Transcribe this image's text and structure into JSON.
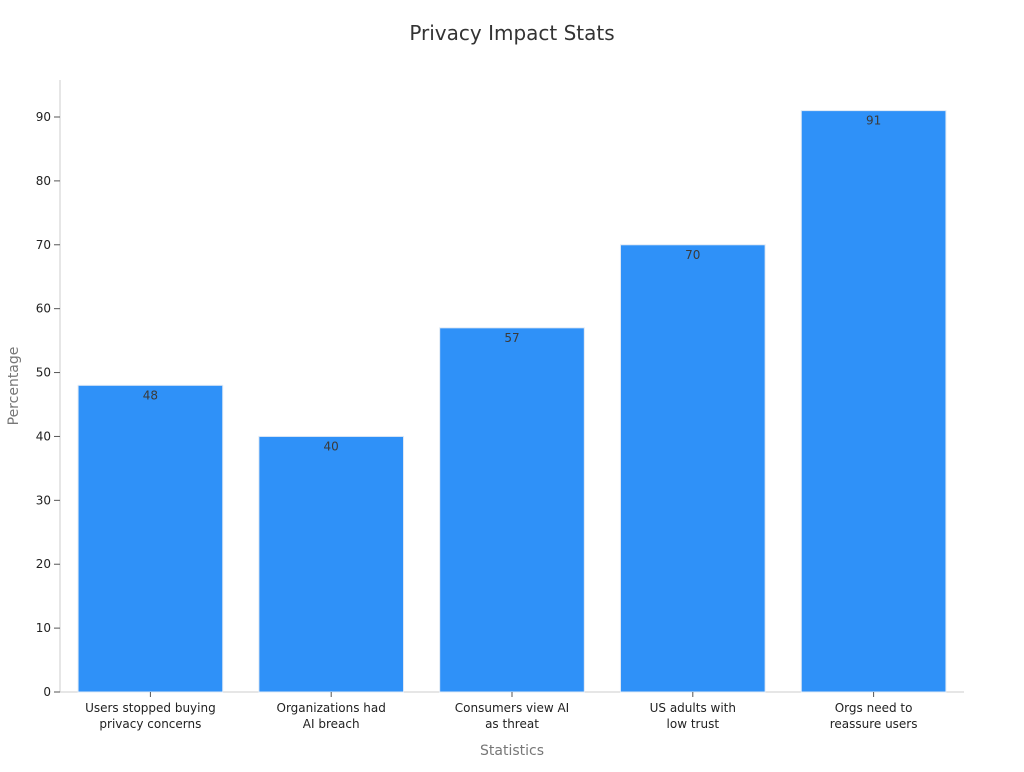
{
  "chart_data": {
    "type": "bar",
    "title": "Privacy Impact Stats",
    "xlabel": "Statistics",
    "ylabel": "Percentage",
    "categories": [
      [
        "Users stopped buying",
        "privacy concerns"
      ],
      [
        "Organizations had",
        "AI breach"
      ],
      [
        "Consumers view AI",
        "as threat"
      ],
      [
        "US adults with",
        "low trust"
      ],
      [
        "Orgs need to",
        "reassure users"
      ]
    ],
    "values": [
      48,
      40,
      57,
      70,
      91
    ],
    "ylim": [
      0,
      95
    ],
    "yticks": [
      0,
      10,
      20,
      30,
      40,
      50,
      60,
      70,
      80,
      90
    ],
    "bar_color": "#2F91F8",
    "bar_edge_color": "#dfe9f5",
    "grid": false,
    "legend": "none"
  }
}
